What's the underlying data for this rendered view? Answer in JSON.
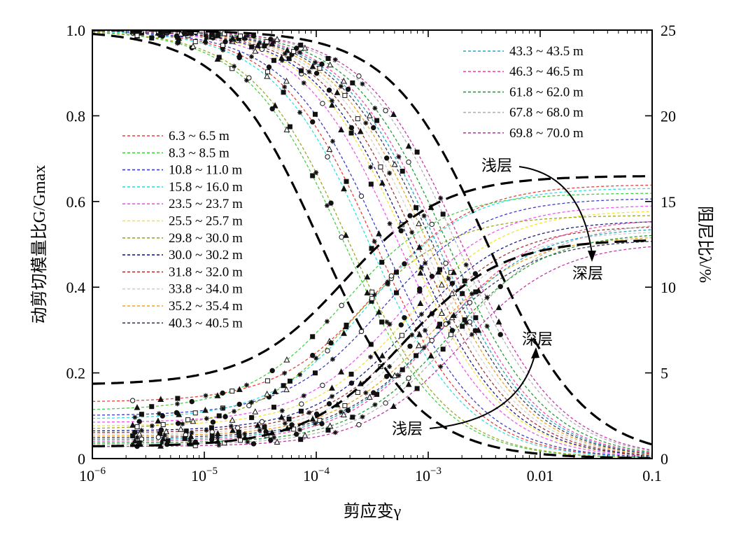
{
  "chart_data": {
    "type": "line",
    "title": "",
    "xlabel": "剪应变γ",
    "ylabel_left": "动剪切模量比G/Gmax",
    "ylabel_right": "阻尼比λ/%",
    "x_scale": "log",
    "xlim": [
      1e-06,
      0.1
    ],
    "ylim_left": [
      0,
      1.0
    ],
    "ylim_right": [
      0,
      25
    ],
    "x_tick_labels": [
      "10−6",
      "10−5",
      "10−4",
      "10−3",
      "0.01",
      "0.1"
    ],
    "y_left_tick_labels": [
      "0",
      "0.2",
      "0.4",
      "0.6",
      "0.8",
      "1.0"
    ],
    "y_right_tick_labels": [
      "0",
      "5",
      "10",
      "15",
      "20",
      "25"
    ],
    "grid": false,
    "legend_position": "left and top-right",
    "series": [
      {
        "name": "6.3 ~ 6.5 m",
        "color": "#e8413c",
        "gamma_ref": 0.00034,
        "dmin": 3.3,
        "dmax": 16.0
      },
      {
        "name": "8.3 ~ 8.5 m",
        "color": "#46d046",
        "gamma_ref": 0.00018,
        "dmin": 2.8,
        "dmax": 15.5
      },
      {
        "name": "10.8 ~ 11.0 m",
        "color": "#3c3cc8",
        "gamma_ref": 0.0004,
        "dmin": 2.5,
        "dmax": 15.2
      },
      {
        "name": "15.8 ~ 16.0 m",
        "color": "#2fe0e0",
        "gamma_ref": 0.0003,
        "dmin": 2.3,
        "dmax": 15.8
      },
      {
        "name": "23.5 ~ 23.7 m",
        "color": "#ee55ee",
        "gamma_ref": 0.00055,
        "dmin": 2.1,
        "dmax": 14.8
      },
      {
        "name": "25.5 ~ 25.7 m",
        "color": "#f3e23a",
        "gamma_ref": 0.00065,
        "dmin": 1.9,
        "dmax": 14.5
      },
      {
        "name": "29.8 ~ 30.0 m",
        "color": "#9aaa22",
        "gamma_ref": 0.0002,
        "dmin": 1.7,
        "dmax": 14.2
      },
      {
        "name": "30.0 ~ 30.2 m",
        "color": "#1c1c88",
        "gamma_ref": 0.0007,
        "dmin": 1.6,
        "dmax": 13.9
      },
      {
        "name": "31.8 ~ 32.0 m",
        "color": "#a03a3a",
        "gamma_ref": 0.0008,
        "dmin": 1.5,
        "dmax": 13.6
      },
      {
        "name": "33.8 ~ 34.0 m",
        "color": "#cfcfcf",
        "gamma_ref": 0.0009,
        "dmin": 1.4,
        "dmax": 13.3
      },
      {
        "name": "35.2 ~ 35.4 m",
        "color": "#f0a020",
        "gamma_ref": 0.001,
        "dmin": 1.3,
        "dmax": 13.0
      },
      {
        "name": "40.3 ~ 40.5 m",
        "color": "#3a3a5a",
        "gamma_ref": 0.0011,
        "dmin": 1.2,
        "dmax": 12.8
      },
      {
        "name": "43.3 ~ 43.5 m",
        "color": "#2aa3c8",
        "gamma_ref": 0.0012,
        "dmin": 1.1,
        "dmax": 13.5
      },
      {
        "name": "46.3 ~ 46.5 m",
        "color": "#f050a0",
        "gamma_ref": 0.0013,
        "dmin": 1.0,
        "dmax": 14.0
      },
      {
        "name": "61.8 ~ 62.0 m",
        "color": "#20a030",
        "gamma_ref": 0.0015,
        "dmin": 0.9,
        "dmax": 13.2
      },
      {
        "name": "67.8 ~ 68.0 m",
        "color": "#b0b0b0",
        "gamma_ref": 0.0018,
        "dmin": 0.8,
        "dmax": 13.8
      },
      {
        "name": "69.8 ~ 70.0 m",
        "color": "#c03aa8",
        "gamma_ref": 0.002,
        "dmin": 0.7,
        "dmax": 12.6
      }
    ],
    "envelopes": {
      "G_upper_gamma_ref": 0.0034,
      "G_lower_gamma_ref": 0.00011,
      "D_upper": {
        "dmin": 4.3,
        "dmax": 16.5,
        "gamma_ref": 0.00018
      },
      "D_lower": {
        "dmin": 0.7,
        "dmax": 12.8,
        "gamma_ref": 0.0006
      }
    },
    "annotations": {
      "g_shallow": "浅层",
      "g_deep": "深层",
      "d_shallow": "浅层",
      "d_deep": "深层"
    }
  }
}
